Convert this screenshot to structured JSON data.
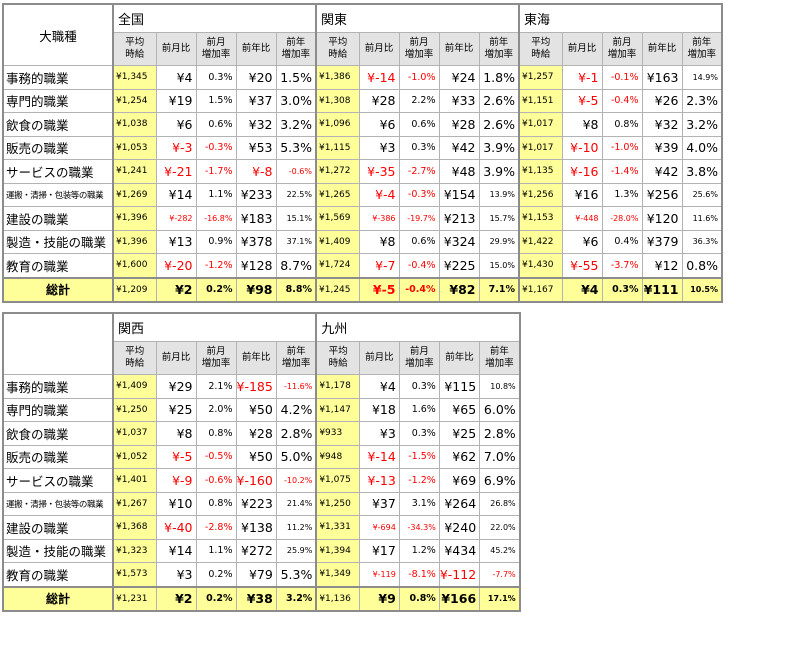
{
  "category_header": "大職種",
  "sub_headers": [
    "平均\n時給",
    "前月比",
    "前月\n増加率",
    "前年比",
    "前年\n増加率"
  ],
  "top": {
    "regions": [
      "全国",
      "関東",
      "東海"
    ],
    "rows": [
      {
        "label": "事務的職業",
        "small": false,
        "cells": [
          [
            "¥1,345",
            "¥4",
            "0.3%",
            "¥20",
            "1.5%"
          ],
          [
            "¥1,386",
            "¥-14",
            "-1.0%",
            "¥24",
            "1.8%"
          ],
          [
            "¥1,257",
            "¥-1",
            "-0.1%",
            "¥163",
            "14.9%"
          ]
        ]
      },
      {
        "label": "専門的職業",
        "small": false,
        "cells": [
          [
            "¥1,254",
            "¥19",
            "1.5%",
            "¥37",
            "3.0%"
          ],
          [
            "¥1,308",
            "¥28",
            "2.2%",
            "¥33",
            "2.6%"
          ],
          [
            "¥1,151",
            "¥-5",
            "-0.4%",
            "¥26",
            "2.3%"
          ]
        ]
      },
      {
        "label": "飲食の職業",
        "small": false,
        "cells": [
          [
            "¥1,038",
            "¥6",
            "0.6%",
            "¥32",
            "3.2%"
          ],
          [
            "¥1,096",
            "¥6",
            "0.6%",
            "¥28",
            "2.6%"
          ],
          [
            "¥1,017",
            "¥8",
            "0.8%",
            "¥32",
            "3.2%"
          ]
        ]
      },
      {
        "label": "販売の職業",
        "small": false,
        "cells": [
          [
            "¥1,053",
            "¥-3",
            "-0.3%",
            "¥53",
            "5.3%"
          ],
          [
            "¥1,115",
            "¥3",
            "0.3%",
            "¥42",
            "3.9%"
          ],
          [
            "¥1,017",
            "¥-10",
            "-1.0%",
            "¥39",
            "4.0%"
          ]
        ]
      },
      {
        "label": "サービスの職業",
        "small": false,
        "cells": [
          [
            "¥1,241",
            "¥-21",
            "-1.7%",
            "¥-8",
            "-0.6%"
          ],
          [
            "¥1,272",
            "¥-35",
            "-2.7%",
            "¥48",
            "3.9%"
          ],
          [
            "¥1,135",
            "¥-16",
            "-1.4%",
            "¥42",
            "3.8%"
          ]
        ]
      },
      {
        "label": "運搬・清掃・包装等の職業",
        "small": true,
        "cells": [
          [
            "¥1,269",
            "¥14",
            "1.1%",
            "¥233",
            "22.5%"
          ],
          [
            "¥1,265",
            "¥-4",
            "-0.3%",
            "¥154",
            "13.9%"
          ],
          [
            "¥1,256",
            "¥16",
            "1.3%",
            "¥256",
            "25.6%"
          ]
        ]
      },
      {
        "label": "建設の職業",
        "small": false,
        "cells": [
          [
            "¥1,396",
            "¥-282",
            "-16.8%",
            "¥183",
            "15.1%"
          ],
          [
            "¥1,569",
            "¥-386",
            "-19.7%",
            "¥213",
            "15.7%"
          ],
          [
            "¥1,153",
            "¥-448",
            "-28.0%",
            "¥120",
            "11.6%"
          ]
        ]
      },
      {
        "label": "製造・技能の職業",
        "small": false,
        "cells": [
          [
            "¥1,396",
            "¥13",
            "0.9%",
            "¥378",
            "37.1%"
          ],
          [
            "¥1,409",
            "¥8",
            "0.6%",
            "¥324",
            "29.9%"
          ],
          [
            "¥1,422",
            "¥6",
            "0.4%",
            "¥379",
            "36.3%"
          ]
        ]
      },
      {
        "label": "教育の職業",
        "small": false,
        "cells": [
          [
            "¥1,600",
            "¥-20",
            "-1.2%",
            "¥128",
            "8.7%"
          ],
          [
            "¥1,724",
            "¥-7",
            "-0.4%",
            "¥225",
            "15.0%"
          ],
          [
            "¥1,430",
            "¥-55",
            "-3.7%",
            "¥12",
            "0.8%"
          ]
        ]
      }
    ],
    "total": {
      "label": "総計",
      "cells": [
        [
          "¥1,209",
          "¥2",
          "0.2%",
          "¥98",
          "8.8%"
        ],
        [
          "¥1,245",
          "¥-5",
          "-0.4%",
          "¥82",
          "7.1%"
        ],
        [
          "¥1,167",
          "¥4",
          "0.3%",
          "¥111",
          "10.5%"
        ]
      ]
    }
  },
  "bottom": {
    "regions": [
      "関西",
      "九州"
    ],
    "rows": [
      {
        "label": "事務的職業",
        "small": false,
        "cells": [
          [
            "¥1,409",
            "¥29",
            "2.1%",
            "¥-185",
            "-11.6%"
          ],
          [
            "¥1,178",
            "¥4",
            "0.3%",
            "¥115",
            "10.8%"
          ]
        ]
      },
      {
        "label": "専門的職業",
        "small": false,
        "cells": [
          [
            "¥1,250",
            "¥25",
            "2.0%",
            "¥50",
            "4.2%"
          ],
          [
            "¥1,147",
            "¥18",
            "1.6%",
            "¥65",
            "6.0%"
          ]
        ]
      },
      {
        "label": "飲食の職業",
        "small": false,
        "cells": [
          [
            "¥1,037",
            "¥8",
            "0.8%",
            "¥28",
            "2.8%"
          ],
          [
            "¥933",
            "¥3",
            "0.3%",
            "¥25",
            "2.8%"
          ]
        ]
      },
      {
        "label": "販売の職業",
        "small": false,
        "cells": [
          [
            "¥1,052",
            "¥-5",
            "-0.5%",
            "¥50",
            "5.0%"
          ],
          [
            "¥948",
            "¥-14",
            "-1.5%",
            "¥62",
            "7.0%"
          ]
        ]
      },
      {
        "label": "サービスの職業",
        "small": false,
        "cells": [
          [
            "¥1,401",
            "¥-9",
            "-0.6%",
            "¥-160",
            "-10.2%"
          ],
          [
            "¥1,075",
            "¥-13",
            "-1.2%",
            "¥69",
            "6.9%"
          ]
        ]
      },
      {
        "label": "運搬・清掃・包装等の職業",
        "small": true,
        "cells": [
          [
            "¥1,267",
            "¥10",
            "0.8%",
            "¥223",
            "21.4%"
          ],
          [
            "¥1,250",
            "¥37",
            "3.1%",
            "¥264",
            "26.8%"
          ]
        ]
      },
      {
        "label": "建設の職業",
        "small": false,
        "cells": [
          [
            "¥1,368",
            "¥-40",
            "-2.8%",
            "¥138",
            "11.2%"
          ],
          [
            "¥1,331",
            "¥-694",
            "-34.3%",
            "¥240",
            "22.0%"
          ]
        ]
      },
      {
        "label": "製造・技能の職業",
        "small": false,
        "cells": [
          [
            "¥1,323",
            "¥14",
            "1.1%",
            "¥272",
            "25.9%"
          ],
          [
            "¥1,394",
            "¥17",
            "1.2%",
            "¥434",
            "45.2%"
          ]
        ]
      },
      {
        "label": "教育の職業",
        "small": false,
        "cells": [
          [
            "¥1,573",
            "¥3",
            "0.2%",
            "¥79",
            "5.3%"
          ],
          [
            "¥1,349",
            "¥-119",
            "-8.1%",
            "¥-112",
            "-7.7%"
          ]
        ]
      }
    ],
    "total": {
      "label": "総計",
      "cells": [
        [
          "¥1,231",
          "¥2",
          "0.2%",
          "¥38",
          "3.2%"
        ],
        [
          "¥1,136",
          "¥9",
          "0.8%",
          "¥166",
          "17.1%"
        ]
      ]
    }
  }
}
